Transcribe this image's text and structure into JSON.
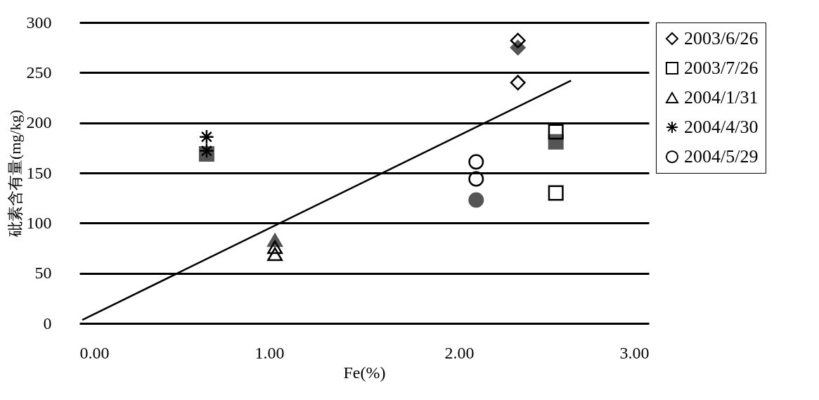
{
  "chart_data": {
    "type": "scatter",
    "xlabel": "Fe(%)",
    "ylabel": "砒素含有量(mg/kg)",
    "xlim": [
      0,
      3
    ],
    "ylim": [
      0,
      300
    ],
    "xticks": [
      {
        "value": 0,
        "label": "0.00"
      },
      {
        "value": 1,
        "label": "1.00"
      },
      {
        "value": 2,
        "label": "2.00"
      },
      {
        "value": 3,
        "label": "3.00"
      }
    ],
    "yticks": [
      0,
      50,
      100,
      150,
      200,
      250,
      300
    ],
    "grid": "y",
    "legend": "top right",
    "series": [
      {
        "color": "#555555",
        "marker": "diamond",
        "x": [
          2.31
        ],
        "values": [
          275
        ]
      },
      {
        "color": "#555555",
        "marker": "square",
        "x": [
          2.51,
          0.67
        ],
        "values": [
          181,
          169
        ]
      },
      {
        "color": "#555555",
        "marker": "triangle",
        "x": [
          1.03
        ],
        "values": [
          83
        ]
      },
      {
        "color": "#555555",
        "marker": "circle",
        "x": [
          2.09
        ],
        "values": [
          123
        ]
      },
      {
        "name": "2003/6/26",
        "color": "#000000",
        "marker": "diamond",
        "x": [
          2.31,
          2.31
        ],
        "values": [
          282,
          240
        ]
      },
      {
        "name": "2003/7/26",
        "color": "#000000",
        "marker": "square",
        "x": [
          2.51,
          2.51
        ],
        "values": [
          191,
          130
        ]
      },
      {
        "name": "2004/1/31",
        "color": "#000000",
        "marker": "triangle",
        "x": [
          1.03,
          1.03
        ],
        "values": [
          76,
          69
        ]
      },
      {
        "name": "2004/4/30",
        "color": "#000000",
        "marker": "cross",
        "x": [
          0.67,
          0.67
        ],
        "values": [
          186,
          172
        ]
      },
      {
        "name": "2004/5/29",
        "color": "#000000",
        "marker": "circle",
        "x": [
          2.09,
          2.09
        ],
        "values": [
          161,
          144
        ]
      },
      {
        "type": "line",
        "color": "#000000",
        "x": [
          0.015,
          2.59
        ],
        "values": [
          3.5,
          242
        ]
      }
    ]
  }
}
